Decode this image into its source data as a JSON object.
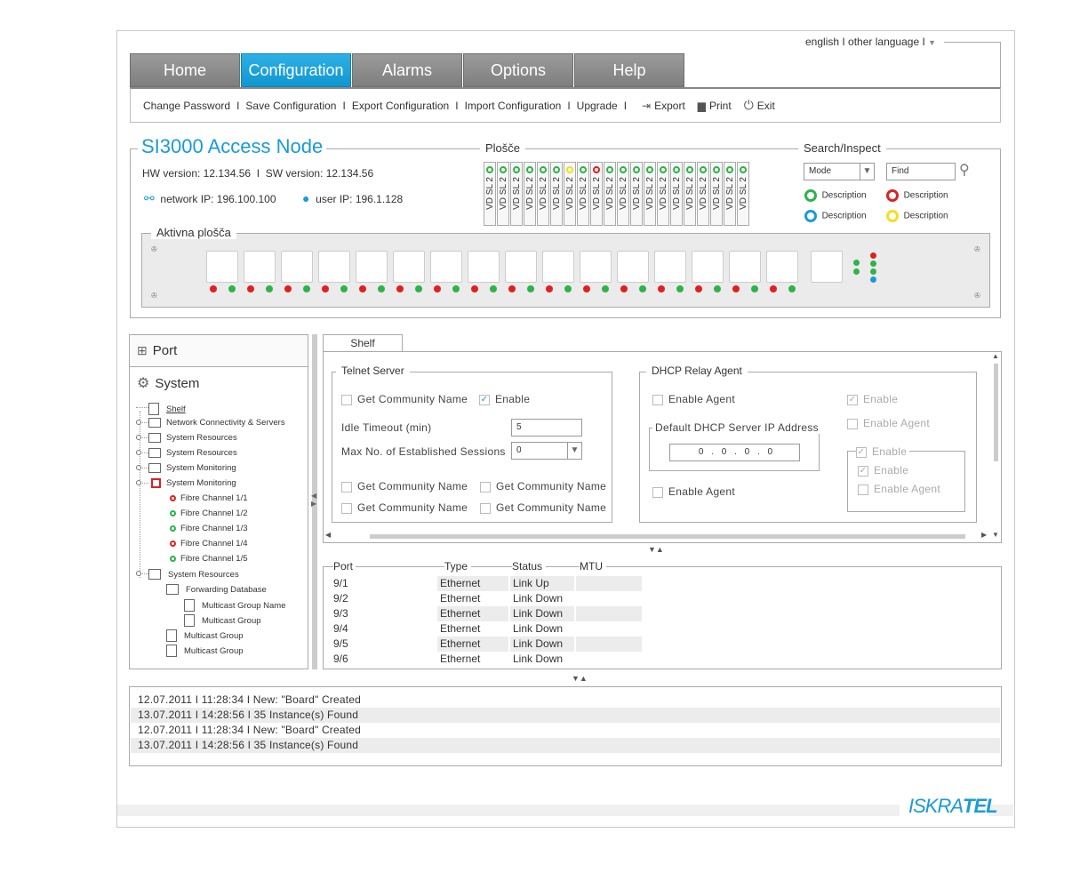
{
  "lang": {
    "english": "english",
    "other": "other language"
  },
  "tabs": [
    "Home",
    "Configuration",
    "Alarms",
    "Options",
    "Help"
  ],
  "submenu": {
    "items": [
      "Change Password",
      "Save Configuration",
      "Export Configuration",
      "Import Configuration",
      "Upgrade"
    ],
    "export": "Export",
    "print": "Print",
    "exit": "Exit"
  },
  "node": {
    "title": "SI3000 Access Node",
    "hw_label": "HW version: 12.134.56",
    "sw_label": "SW version: 12.134.56",
    "network_ip": "network IP: 196.100.100",
    "user_ip": "user IP: 196.1.128"
  },
  "plosce": {
    "legend": "Plošče",
    "slot_label": "VD SL 2"
  },
  "search": {
    "legend": "Search/Inspect",
    "mode": "Mode",
    "find": "Find",
    "desc": "Description"
  },
  "aktivna": {
    "legend": "Aktivna plošča"
  },
  "side": {
    "port": "Port",
    "system": "System",
    "tree": [
      "Shelf",
      "Network Connectivity & Servers",
      "System Resources",
      "System Resources",
      "System Monitoring",
      "System Monitoring",
      "Fibre Channel 1/1",
      "Fibre Channel 1/2",
      "Fibre Channel 1/3",
      "Fibre Channel 1/4",
      "Fibre Channel 1/5",
      "System Resources",
      "Forwarding Database",
      "Multicast Group Name",
      "Multicast Group",
      "Multicast Group",
      "Multicast Group"
    ]
  },
  "shelf_tab": "Shelf",
  "telnet": {
    "legend": "Telnet Server",
    "get_community": "Get Community Name",
    "enable": "Enable",
    "idle_label": "Idle Timeout (min)",
    "idle_value": "5",
    "max_label": "Max No. of Established Sessions",
    "max_value": "0"
  },
  "dhcp": {
    "legend": "DHCP Relay Agent",
    "enable_agent": "Enable Agent",
    "enable": "Enable",
    "default_legend": "Default DHCP Server IP Address",
    "ip": "0 . 0 . 0 . 0"
  },
  "table": {
    "headers": [
      "Port",
      "Type",
      "Status",
      "MTU"
    ],
    "rows": [
      [
        "9/1",
        "Ethernet",
        "Link Up"
      ],
      [
        "9/2",
        "Ethernet",
        "Link Down"
      ],
      [
        "9/3",
        "Ethernet",
        "Link Down"
      ],
      [
        "9/4",
        "Ethernet",
        "Link Down"
      ],
      [
        "9/5",
        "Ethernet",
        "Link Down"
      ],
      [
        "9/6",
        "Ethernet",
        "Link Down"
      ]
    ]
  },
  "log": [
    "12.07.2011  I  11:28:34  I  New: \"Board\" Created",
    "13.07.2011  I  14:28:56  I  35 Instance(s) Found",
    "12.07.2011  I  11:28:34  I  New: \"Board\" Created",
    "13.07.2011  I  14:28:56  I  35 Instance(s) Found"
  ],
  "brand": {
    "iskra": "ISKRA",
    "tel": "TEL"
  },
  "colors": {
    "accent": "#1a9bd7",
    "green": "#2db34a",
    "red": "#e02020",
    "yellow": "#f0e020",
    "blue": "#1a9bd7"
  }
}
